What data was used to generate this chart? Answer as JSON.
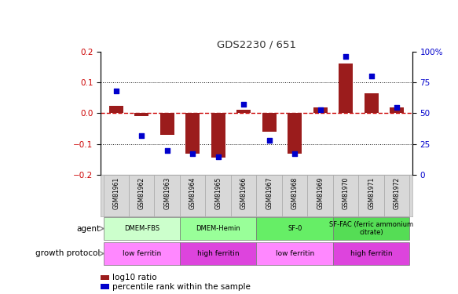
{
  "title": "GDS2230 / 651",
  "samples": [
    "GSM81961",
    "GSM81962",
    "GSM81963",
    "GSM81964",
    "GSM81965",
    "GSM81966",
    "GSM81967",
    "GSM81968",
    "GSM81969",
    "GSM81970",
    "GSM81971",
    "GSM81972"
  ],
  "log10_ratio": [
    0.025,
    -0.01,
    -0.07,
    -0.13,
    -0.145,
    0.01,
    -0.06,
    -0.13,
    0.02,
    0.16,
    0.065,
    0.02
  ],
  "percentile_rank": [
    68,
    32,
    20,
    17,
    15,
    57,
    28,
    17,
    53,
    96,
    80,
    55
  ],
  "ylim_left": [
    -0.2,
    0.2
  ],
  "ylim_right": [
    0,
    100
  ],
  "yticks_left": [
    -0.2,
    -0.1,
    0.0,
    0.1,
    0.2
  ],
  "yticks_right": [
    0,
    25,
    50,
    75,
    100
  ],
  "bar_color": "#9B1C1C",
  "dot_color": "#0000CC",
  "zero_line_color": "#CC0000",
  "agent_groups": [
    {
      "label": "DMEM-FBS",
      "start": 0,
      "end": 3,
      "color": "#CCFFCC"
    },
    {
      "label": "DMEM-Hemin",
      "start": 3,
      "end": 6,
      "color": "#99FF99"
    },
    {
      "label": "SF-0",
      "start": 6,
      "end": 9,
      "color": "#66EE66"
    },
    {
      "label": "SF-FAC (ferric ammonium\ncitrate)",
      "start": 9,
      "end": 12,
      "color": "#55DD55"
    }
  ],
  "growth_groups": [
    {
      "label": "low ferritin",
      "start": 0,
      "end": 3,
      "color": "#FF88FF"
    },
    {
      "label": "high ferritin",
      "start": 3,
      "end": 6,
      "color": "#DD44DD"
    },
    {
      "label": "low ferritin",
      "start": 6,
      "end": 9,
      "color": "#FF88FF"
    },
    {
      "label": "high ferritin",
      "start": 9,
      "end": 12,
      "color": "#DD44DD"
    }
  ],
  "agent_label": "agent",
  "growth_label": "growth protocol",
  "legend_bar_label": "log10 ratio",
  "legend_dot_label": "percentile rank within the sample",
  "dotted_line_color": "#000000",
  "background_color": "#FFFFFF",
  "tick_label_color_left": "#CC0000",
  "tick_label_color_right": "#0000CC",
  "xlab_bg": "#D8D8D8",
  "xlab_border": "#AAAAAA"
}
